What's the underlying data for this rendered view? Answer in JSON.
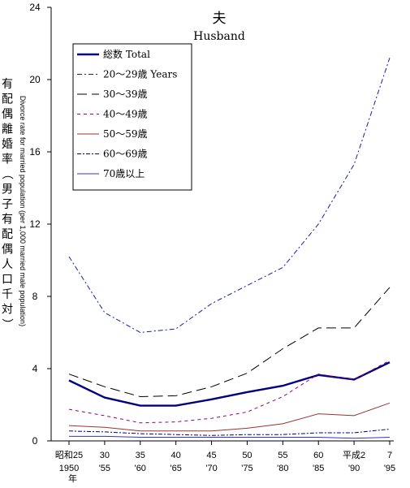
{
  "chart_data": {
    "type": "line",
    "title": "夫",
    "subtitle": "Husband",
    "ylabel_jp": "有配偶離婚率（男子有配偶人口千対）",
    "ylabel_en": "Divorce rate for married population (per 1,000 married male population)",
    "x_unit_label": "年",
    "x": [
      {
        "top": "昭和25",
        "bottom": "1950"
      },
      {
        "top": "30",
        "bottom": "'55"
      },
      {
        "top": "35",
        "bottom": "'60"
      },
      {
        "top": "40",
        "bottom": "'65"
      },
      {
        "top": "45",
        "bottom": "'70"
      },
      {
        "top": "50",
        "bottom": "'75"
      },
      {
        "top": "55",
        "bottom": "'80"
      },
      {
        "top": "60",
        "bottom": "'85"
      },
      {
        "top": "平成2",
        "bottom": "'90"
      },
      {
        "top": "7",
        "bottom": "'95"
      }
    ],
    "ylim": [
      0,
      24
    ],
    "yticks": [
      0,
      4,
      8,
      12,
      16,
      20,
      24
    ],
    "grid": false,
    "legend_position": "top-left",
    "series": [
      {
        "name": "総数 Total",
        "style": "solid-bold",
        "color": "#000080",
        "values": [
          3.35,
          2.4,
          1.95,
          1.95,
          2.3,
          2.7,
          3.05,
          3.65,
          3.4,
          4.35
        ]
      },
      {
        "name": "20～29歳 Years",
        "style": "dash-dot",
        "color": "#1a1aa6",
        "values": [
          10.2,
          7.1,
          6.0,
          6.2,
          7.6,
          8.6,
          9.6,
          12.0,
          15.3,
          21.2
        ]
      },
      {
        "name": "30～39歳",
        "style": "long-dash",
        "color": "#000000",
        "values": [
          3.7,
          3.0,
          2.45,
          2.5,
          3.0,
          3.75,
          5.1,
          6.25,
          6.25,
          8.5
        ]
      },
      {
        "name": "40～49歳",
        "style": "dash",
        "color": "#990066",
        "values": [
          1.75,
          1.4,
          1.0,
          1.05,
          1.25,
          1.6,
          2.45,
          3.7,
          3.4,
          4.45
        ]
      },
      {
        "name": "50～59歳",
        "style": "solid",
        "color": "#993333",
        "values": [
          0.85,
          0.75,
          0.55,
          0.55,
          0.55,
          0.7,
          0.95,
          1.5,
          1.4,
          2.1
        ]
      },
      {
        "name": "60～69歳",
        "style": "dash-dot-short",
        "color": "#000080",
        "values": [
          0.55,
          0.5,
          0.4,
          0.35,
          0.3,
          0.35,
          0.35,
          0.45,
          0.45,
          0.65
        ]
      },
      {
        "name": "70歳以上",
        "style": "thin",
        "color": "#3333cc",
        "values": [
          0.25,
          0.25,
          0.2,
          0.2,
          0.2,
          0.2,
          0.2,
          0.2,
          0.15,
          0.2
        ]
      }
    ]
  }
}
